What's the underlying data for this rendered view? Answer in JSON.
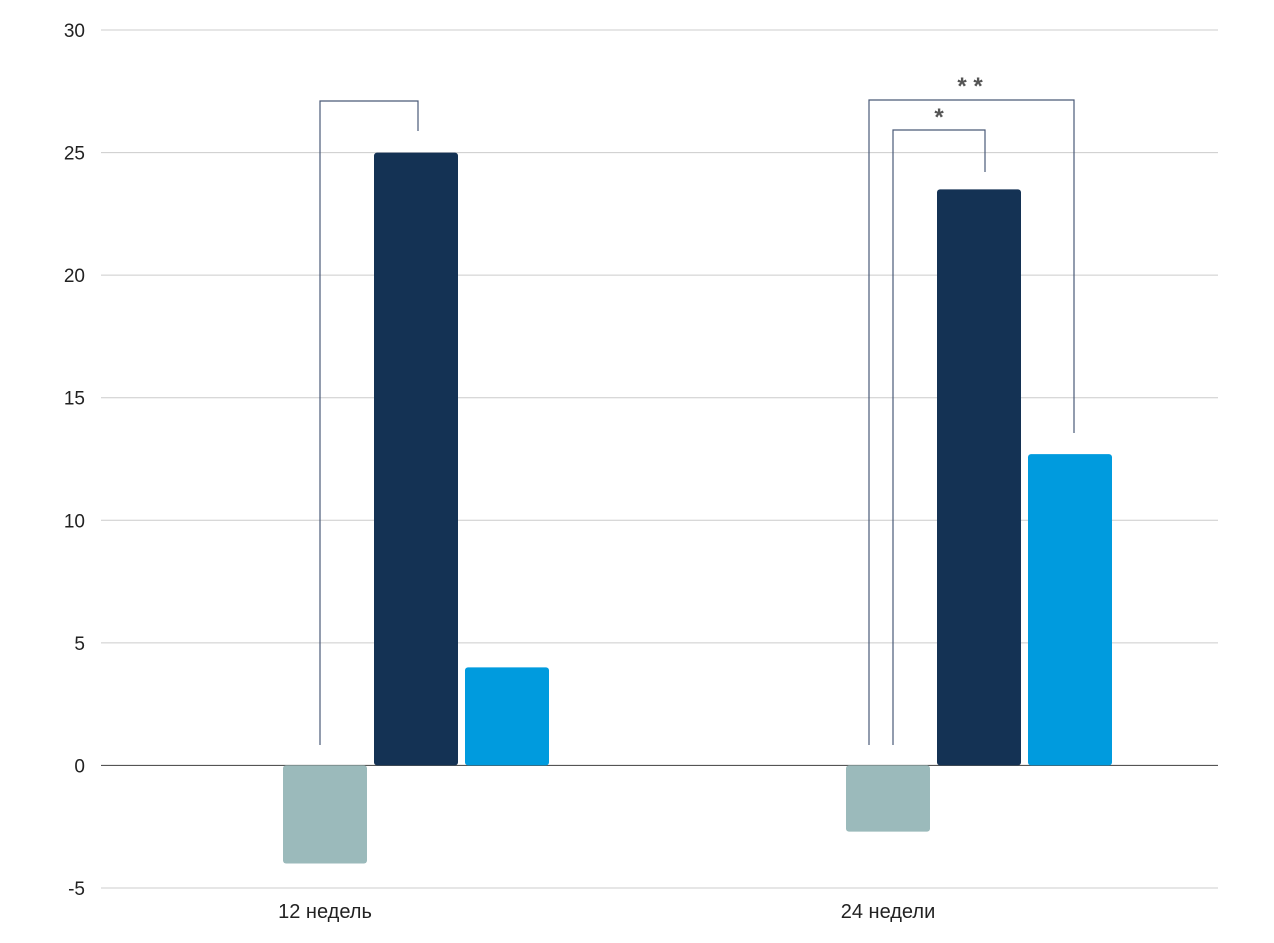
{
  "chart_data": {
    "type": "bar",
    "title": "",
    "xlabel": "",
    "ylabel": "",
    "ylim": [
      -5,
      30
    ],
    "yticks": [
      {
        "value": -5,
        "label": "-5"
      },
      {
        "value": 0,
        "label": "0"
      },
      {
        "value": 5,
        "label": "5"
      },
      {
        "value": 10,
        "label": "10"
      },
      {
        "value": 15,
        "label": "15"
      },
      {
        "value": 20,
        "label": "20"
      },
      {
        "value": 25,
        "label": "25"
      },
      {
        "value": 30,
        "label": "30"
      }
    ],
    "grid": true,
    "categories": [
      "12 недель",
      "24 недели"
    ],
    "series": [
      {
        "color": "#9bbabb",
        "values": [
          -4,
          -2.7
        ]
      },
      {
        "color": "#143254",
        "values": [
          25,
          23.5
        ]
      },
      {
        "color": "#009bde",
        "values": [
          4,
          12.7
        ]
      }
    ],
    "significance": [
      {
        "category": 0,
        "from_series": 0,
        "to_series": 1,
        "label": ""
      },
      {
        "category": 1,
        "from_series": 0,
        "to_series": 1,
        "label": "*"
      },
      {
        "category": 1,
        "from_series": 0,
        "to_series": 2,
        "label": "* *"
      }
    ],
    "colors": {
      "grid": "#cccccc",
      "zero_line": "#555555",
      "bracket": "#4a5a78"
    }
  }
}
